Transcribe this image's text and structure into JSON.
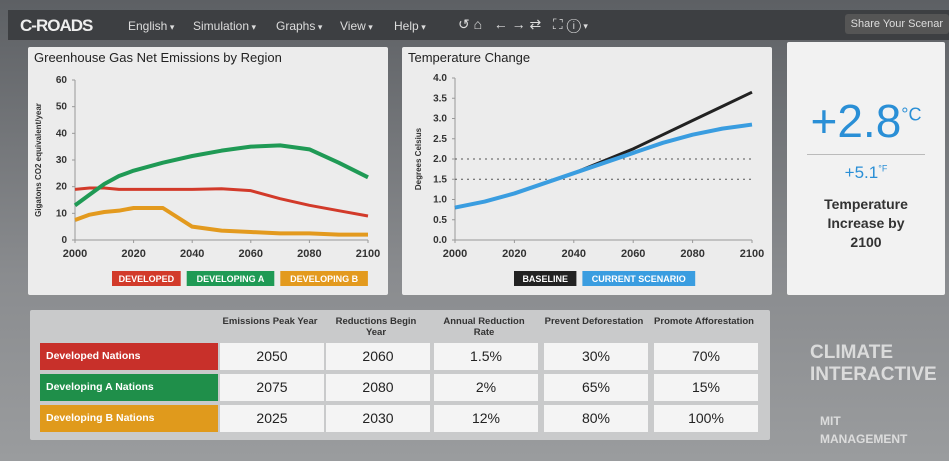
{
  "header": {
    "logo": "C-ROADS",
    "menu": [
      "English",
      "Simulation",
      "Graphs",
      "View",
      "Help"
    ],
    "share": "Share Your Scenar"
  },
  "chart_data": [
    {
      "type": "line",
      "title": "Greenhouse Gas Net Emissions by Region",
      "ylabel": "Gigatons CO2 equivalent/year",
      "x": [
        2000,
        2005,
        2010,
        2015,
        2020,
        2030,
        2040,
        2050,
        2060,
        2070,
        2080,
        2090,
        2100
      ],
      "series": [
        {
          "name": "DEVELOPED",
          "color": "#d23a2a",
          "values": [
            19,
            19.5,
            19.5,
            19,
            19,
            19,
            19,
            19.2,
            18.5,
            15.5,
            13,
            11,
            9
          ]
        },
        {
          "name": "DEVELOPING A",
          "color": "#1f9a55",
          "values": [
            13,
            17,
            21,
            24,
            26,
            29,
            31.5,
            33.5,
            35,
            35.5,
            34,
            29,
            23.5
          ]
        },
        {
          "name": "DEVELOPING B",
          "color": "#e39a1e",
          "values": [
            7.5,
            9.5,
            10.5,
            11,
            12,
            12,
            5,
            3.5,
            3,
            2.5,
            2.5,
            2,
            2
          ]
        }
      ],
      "xlim": [
        2000,
        2100
      ],
      "xticks": [
        2000,
        2020,
        2040,
        2060,
        2080,
        2100
      ],
      "ylim": [
        0,
        60
      ],
      "yticks": [
        0,
        10,
        20,
        30,
        40,
        50,
        60
      ]
    },
    {
      "type": "line",
      "title": "Temperature Change",
      "ylabel": "Degrees Celsius",
      "x": [
        2000,
        2010,
        2020,
        2030,
        2040,
        2050,
        2060,
        2070,
        2080,
        2090,
        2100
      ],
      "series": [
        {
          "name": "BASELINE",
          "color": "#222222",
          "values": [
            0.8,
            0.95,
            1.15,
            1.4,
            1.65,
            1.95,
            2.25,
            2.6,
            2.95,
            3.3,
            3.65
          ]
        },
        {
          "name": "CURRENT SCENARIO",
          "color": "#3a9de0",
          "values": [
            0.8,
            0.95,
            1.15,
            1.4,
            1.65,
            1.9,
            2.15,
            2.4,
            2.6,
            2.75,
            2.85
          ]
        }
      ],
      "xlim": [
        2000,
        2100
      ],
      "xticks": [
        2000,
        2020,
        2040,
        2060,
        2080,
        2100
      ],
      "ylim": [
        0,
        4
      ],
      "yticks": [
        {
          "value": 0,
          "label": "0.0"
        },
        {
          "value": 0.5,
          "label": "0.5"
        },
        {
          "value": 1,
          "label": "1.0"
        },
        {
          "value": 1.5,
          "label": "1.5"
        },
        {
          "value": 2,
          "label": "2.0"
        },
        {
          "value": 2.5,
          "label": "2.5"
        },
        {
          "value": 3,
          "label": "3.0"
        },
        {
          "value": 3.5,
          "label": "3.5"
        },
        {
          "value": 4,
          "label": "4.0"
        }
      ],
      "reference_lines": [
        2,
        1.5
      ]
    }
  ],
  "result": {
    "celsius": "+2.8",
    "celsius_unit": "°C",
    "fahrenheit": "+5.1",
    "fahrenheit_unit": "°F",
    "caption": "Temperature Increase by 2100"
  },
  "table": {
    "columns": [
      "Emissions Peak Year",
      "Reductions Begin Year",
      "Annual Reduction Rate",
      "Prevent Deforestation",
      "Promote Afforestation"
    ],
    "rows": [
      [
        "Developed Nations",
        "2050",
        "2060",
        "1.5%",
        "30%",
        "70%"
      ],
      [
        "Developing A Nations",
        "2075",
        "2080",
        "2%",
        "65%",
        "15%"
      ],
      [
        "Developing B Nations",
        "2025",
        "2030",
        "12%",
        "80%",
        "100%"
      ]
    ],
    "row_colors": [
      "#c8302a",
      "#1f8f4a",
      "#e09a1c"
    ]
  },
  "logos": [
    "CLIMATE INTERACTIVE",
    "MIT MANAGEMENT"
  ]
}
